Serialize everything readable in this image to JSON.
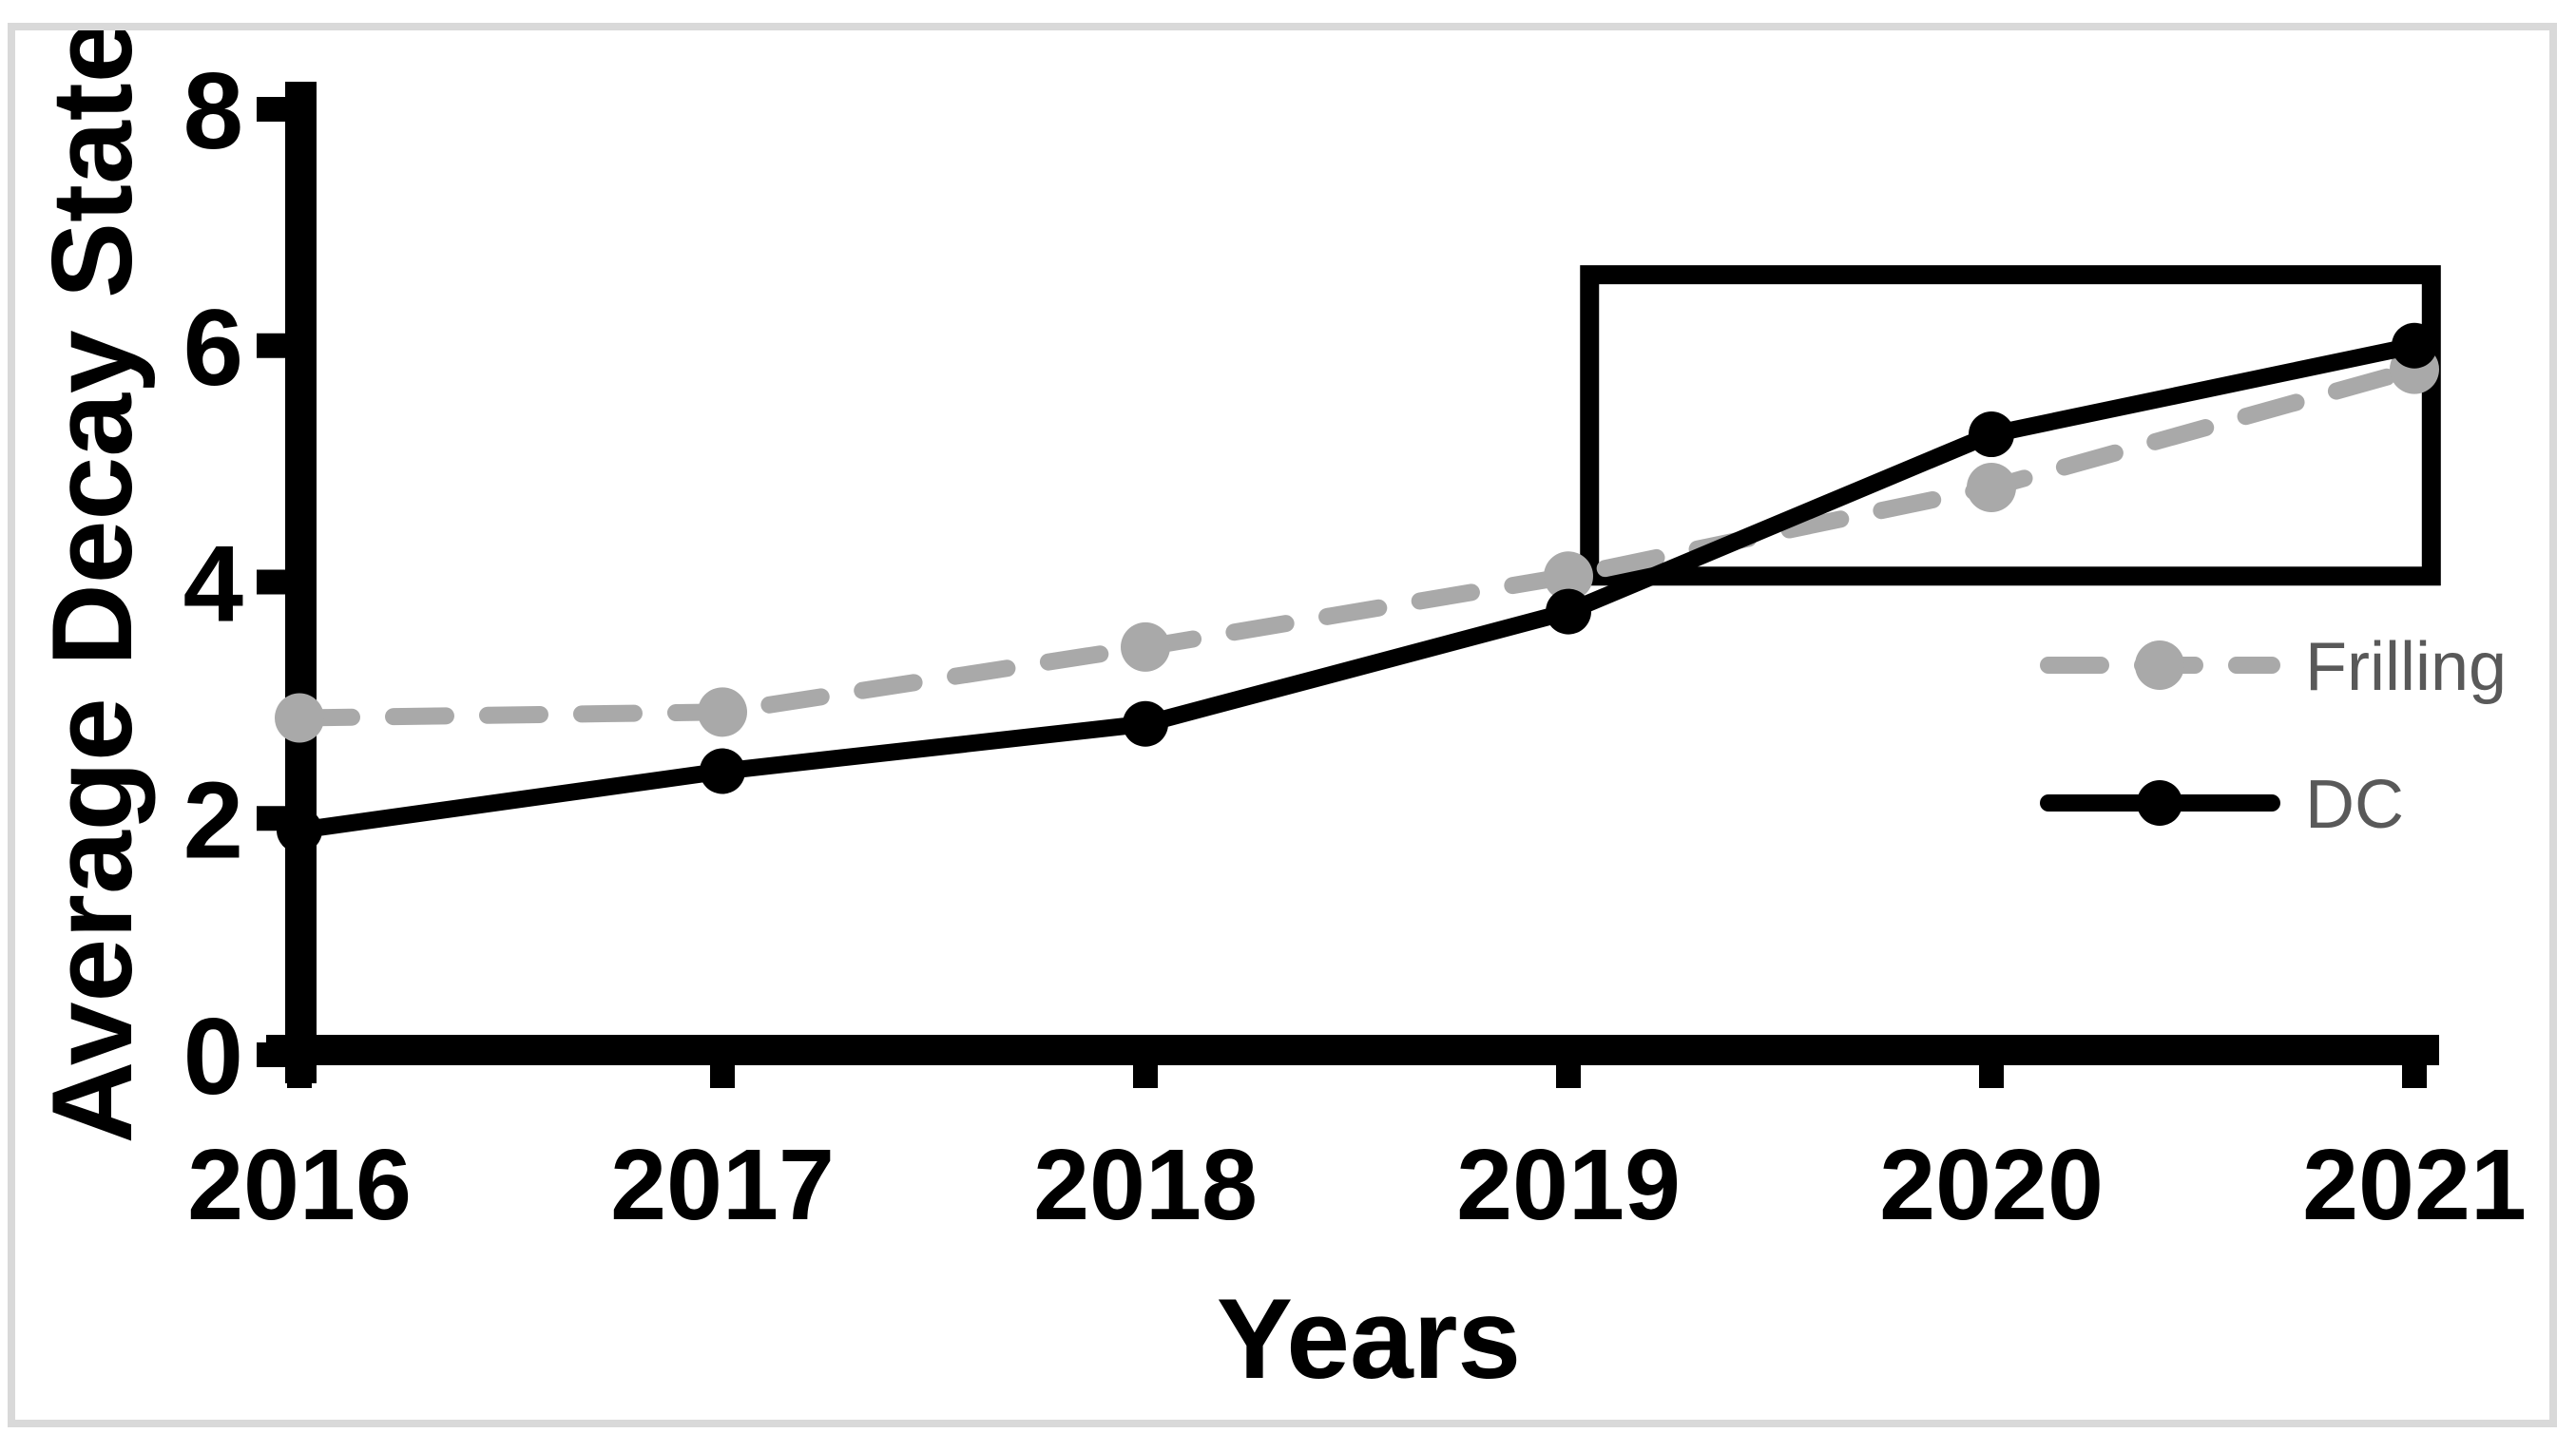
{
  "page": {
    "background": "#ffffff",
    "border_color": "#d9d9d9"
  },
  "chart_data": {
    "type": "line",
    "title": "",
    "xlabel": "Years",
    "ylabel": "Average Decay State",
    "categories": [
      "2016",
      "2017",
      "2018",
      "2019",
      "2020",
      "2021"
    ],
    "yticks": [
      "0",
      "2",
      "4",
      "6",
      "8"
    ],
    "ylim": [
      0,
      8
    ],
    "grid": false,
    "legend_position": "middle-right",
    "axis_color": "#000000",
    "legend_text_color": "#595959",
    "series": [
      {
        "name": "Frilling",
        "color": "#a9a9a9",
        "line_style": "dashed",
        "marker": "circle",
        "values": [
          2.85,
          2.9,
          3.45,
          4.05,
          4.8,
          5.8
        ]
      },
      {
        "name": "DC",
        "color": "#000000",
        "line_style": "solid",
        "marker": "circle",
        "values": [
          1.9,
          2.4,
          2.8,
          3.75,
          5.25,
          6.0
        ]
      }
    ],
    "annotations": [
      {
        "type": "rect",
        "name": "highlight-box",
        "x0_year": 2019.05,
        "x1_year": 2021.04,
        "y0_value": 4.05,
        "y1_value": 6.6,
        "stroke": "#000000"
      }
    ]
  }
}
